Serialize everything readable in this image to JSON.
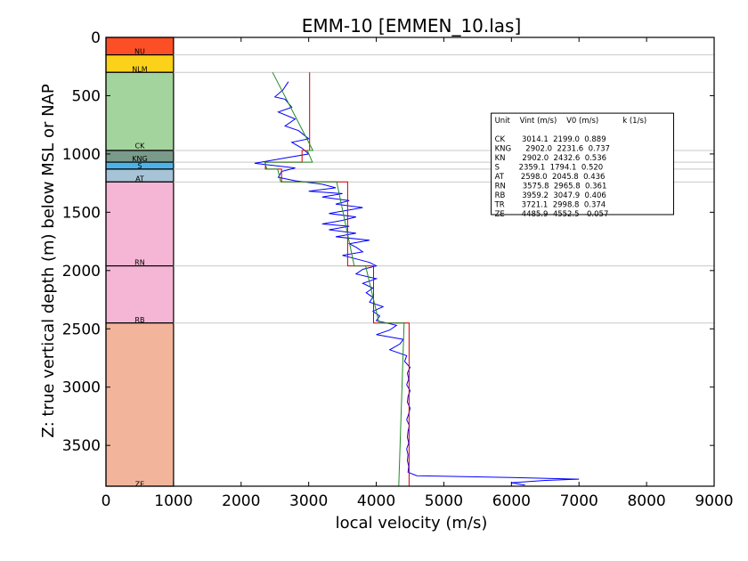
{
  "chart_data": {
    "type": "line",
    "title": "EMM-10 [EMMEN_10.las]",
    "xlabel": "local velocity (m/s)",
    "ylabel": "Z: true vertical depth (m) below MSL or NAP",
    "xlim": [
      0,
      9000
    ],
    "ylim": [
      3850,
      0
    ],
    "x_ticks": [
      0,
      1000,
      2000,
      3000,
      4000,
      5000,
      6000,
      7000,
      8000,
      9000
    ],
    "y_ticks": [
      0,
      500,
      1000,
      1500,
      2000,
      2500,
      3000,
      3500
    ],
    "grid": false,
    "units": [
      {
        "name": "NU",
        "top": 0,
        "bottom": 150,
        "color": "#fc4f25"
      },
      {
        "name": "NLM",
        "top": 150,
        "bottom": 300,
        "color": "#fbd11a"
      },
      {
        "name": "CK",
        "top": 300,
        "bottom": 970,
        "color": "#a4d49d"
      },
      {
        "name": "KNG",
        "top": 970,
        "bottom": 1070,
        "color": "#7a9a8a"
      },
      {
        "name": "S",
        "top": 1070,
        "bottom": 1130,
        "color": "#4db3e6"
      },
      {
        "name": "AT",
        "top": 1130,
        "bottom": 1240,
        "color": "#a7c3d6"
      },
      {
        "name": "RN",
        "top": 1240,
        "bottom": 1960,
        "color": "#f4b6d4"
      },
      {
        "name": "RB",
        "top": 1960,
        "bottom": 2450,
        "color": "#f4b6d4"
      },
      {
        "name": "ZE",
        "top": 2450,
        "bottom": 3850,
        "color": "#f2b59c"
      }
    ],
    "unit_label_depths": [
      {
        "name": "NU",
        "depth": 120
      },
      {
        "name": "NLM",
        "depth": 270
      },
      {
        "name": "CK",
        "depth": 930
      },
      {
        "name": "KNG",
        "depth": 1040
      },
      {
        "name": "S",
        "depth": 1100
      },
      {
        "name": "AT",
        "depth": 1210
      },
      {
        "name": "RN",
        "depth": 1930
      },
      {
        "name": "RB",
        "depth": 2420
      },
      {
        "name": "ZE",
        "depth": 3830
      }
    ],
    "boundary_depths": [
      150,
      300,
      970,
      1070,
      1130,
      1240,
      1960,
      2450,
      3850
    ],
    "legend": {
      "placement": "upper right",
      "header": "Unit    Vint (m/s)    V0 (m/s)          k (1/s)",
      "rows": [
        "CK       3014.1  2199.0  0.889",
        "KNG      2902.0  2231.6  0.737",
        "KN       2902.0  2432.6  0.536",
        "S        2359.1  1794.1  0.520",
        "AT       2598.0  2045.8  0.436",
        "RN       3575.8  2965.8  0.361",
        "RB       3959.2  3047.9  0.406",
        "TR       3721.1  2998.8  0.374",
        "ZE       4485.9  4552.5  -0.057"
      ]
    },
    "series": [
      {
        "color": "#0000ff",
        "style": "log",
        "points": [
          [
            2700,
            380
          ],
          [
            2620,
            450
          ],
          [
            2500,
            510
          ],
          [
            2650,
            530
          ],
          [
            2750,
            600
          ],
          [
            2550,
            640
          ],
          [
            2800,
            700
          ],
          [
            2650,
            760
          ],
          [
            2850,
            800
          ],
          [
            3000,
            870
          ],
          [
            2750,
            900
          ],
          [
            2900,
            950
          ],
          [
            3000,
            1000
          ],
          [
            2700,
            1030
          ],
          [
            2400,
            1060
          ],
          [
            2200,
            1080
          ],
          [
            2500,
            1100
          ],
          [
            2800,
            1120
          ],
          [
            2600,
            1150
          ],
          [
            2550,
            1200
          ],
          [
            2800,
            1230
          ],
          [
            3200,
            1260
          ],
          [
            3400,
            1290
          ],
          [
            3000,
            1320
          ],
          [
            3500,
            1340
          ],
          [
            3200,
            1370
          ],
          [
            3600,
            1400
          ],
          [
            3400,
            1430
          ],
          [
            3800,
            1460
          ],
          [
            3500,
            1490
          ],
          [
            3300,
            1510
          ],
          [
            3700,
            1540
          ],
          [
            3500,
            1570
          ],
          [
            3200,
            1600
          ],
          [
            3600,
            1620
          ],
          [
            3300,
            1650
          ],
          [
            3700,
            1680
          ],
          [
            3400,
            1710
          ],
          [
            3900,
            1740
          ],
          [
            3600,
            1770
          ],
          [
            3700,
            1800
          ],
          [
            3800,
            1840
          ],
          [
            3500,
            1870
          ],
          [
            3700,
            1900
          ],
          [
            3900,
            1930
          ],
          [
            4000,
            1960
          ],
          [
            3800,
            1990
          ],
          [
            3700,
            2030
          ],
          [
            4000,
            2070
          ],
          [
            3800,
            2110
          ],
          [
            3950,
            2150
          ],
          [
            3850,
            2190
          ],
          [
            3950,
            2230
          ],
          [
            3900,
            2270
          ],
          [
            4100,
            2310
          ],
          [
            3950,
            2350
          ],
          [
            4050,
            2390
          ],
          [
            4000,
            2430
          ],
          [
            4300,
            2470
          ],
          [
            4200,
            2510
          ],
          [
            4000,
            2550
          ],
          [
            4400,
            2590
          ],
          [
            4350,
            2630
          ],
          [
            4200,
            2680
          ],
          [
            4450,
            2730
          ],
          [
            4420,
            2780
          ],
          [
            4500,
            2830
          ],
          [
            4460,
            2880
          ],
          [
            4480,
            2930
          ],
          [
            4450,
            2980
          ],
          [
            4500,
            3030
          ],
          [
            4470,
            3080
          ],
          [
            4460,
            3130
          ],
          [
            4500,
            3180
          ],
          [
            4480,
            3230
          ],
          [
            4450,
            3280
          ],
          [
            4490,
            3330
          ],
          [
            4470,
            3380
          ],
          [
            4460,
            3430
          ],
          [
            4480,
            3480
          ],
          [
            4450,
            3530
          ],
          [
            4470,
            3580
          ],
          [
            4460,
            3630
          ],
          [
            4480,
            3680
          ],
          [
            4470,
            3730
          ],
          [
            4600,
            3760
          ],
          [
            6000,
            3775
          ],
          [
            7000,
            3790
          ],
          [
            6500,
            3800
          ],
          [
            6000,
            3820
          ],
          [
            6200,
            3840
          ]
        ]
      },
      {
        "color": "#cc0000",
        "style": "step",
        "points": [
          [
            3014.1,
            300
          ],
          [
            3014.1,
            970
          ],
          [
            2902.0,
            970
          ],
          [
            2902.0,
            1070
          ],
          [
            2359.1,
            1070
          ],
          [
            2359.1,
            1130
          ],
          [
            2598.0,
            1130
          ],
          [
            2598.0,
            1240
          ],
          [
            3575.8,
            1240
          ],
          [
            3575.8,
            1960
          ],
          [
            3959.2,
            1960
          ],
          [
            3959.2,
            2450
          ],
          [
            4485.9,
            2450
          ],
          [
            4485.9,
            3850
          ]
        ]
      },
      {
        "color": "#228b22",
        "style": "linear",
        "points": [
          [
            2466,
            300
          ],
          [
            3062,
            970
          ],
          [
            2980,
            970
          ],
          [
            3054,
            1070
          ],
          [
            2351,
            1070
          ],
          [
            2380,
            1130
          ],
          [
            2540,
            1130
          ],
          [
            2586,
            1240
          ],
          [
            3414,
            1240
          ],
          [
            3674,
            1960
          ],
          [
            3843,
            1960
          ],
          [
            4042,
            2450
          ],
          [
            4412,
            2450
          ],
          [
            4332,
            3850
          ]
        ]
      }
    ]
  }
}
